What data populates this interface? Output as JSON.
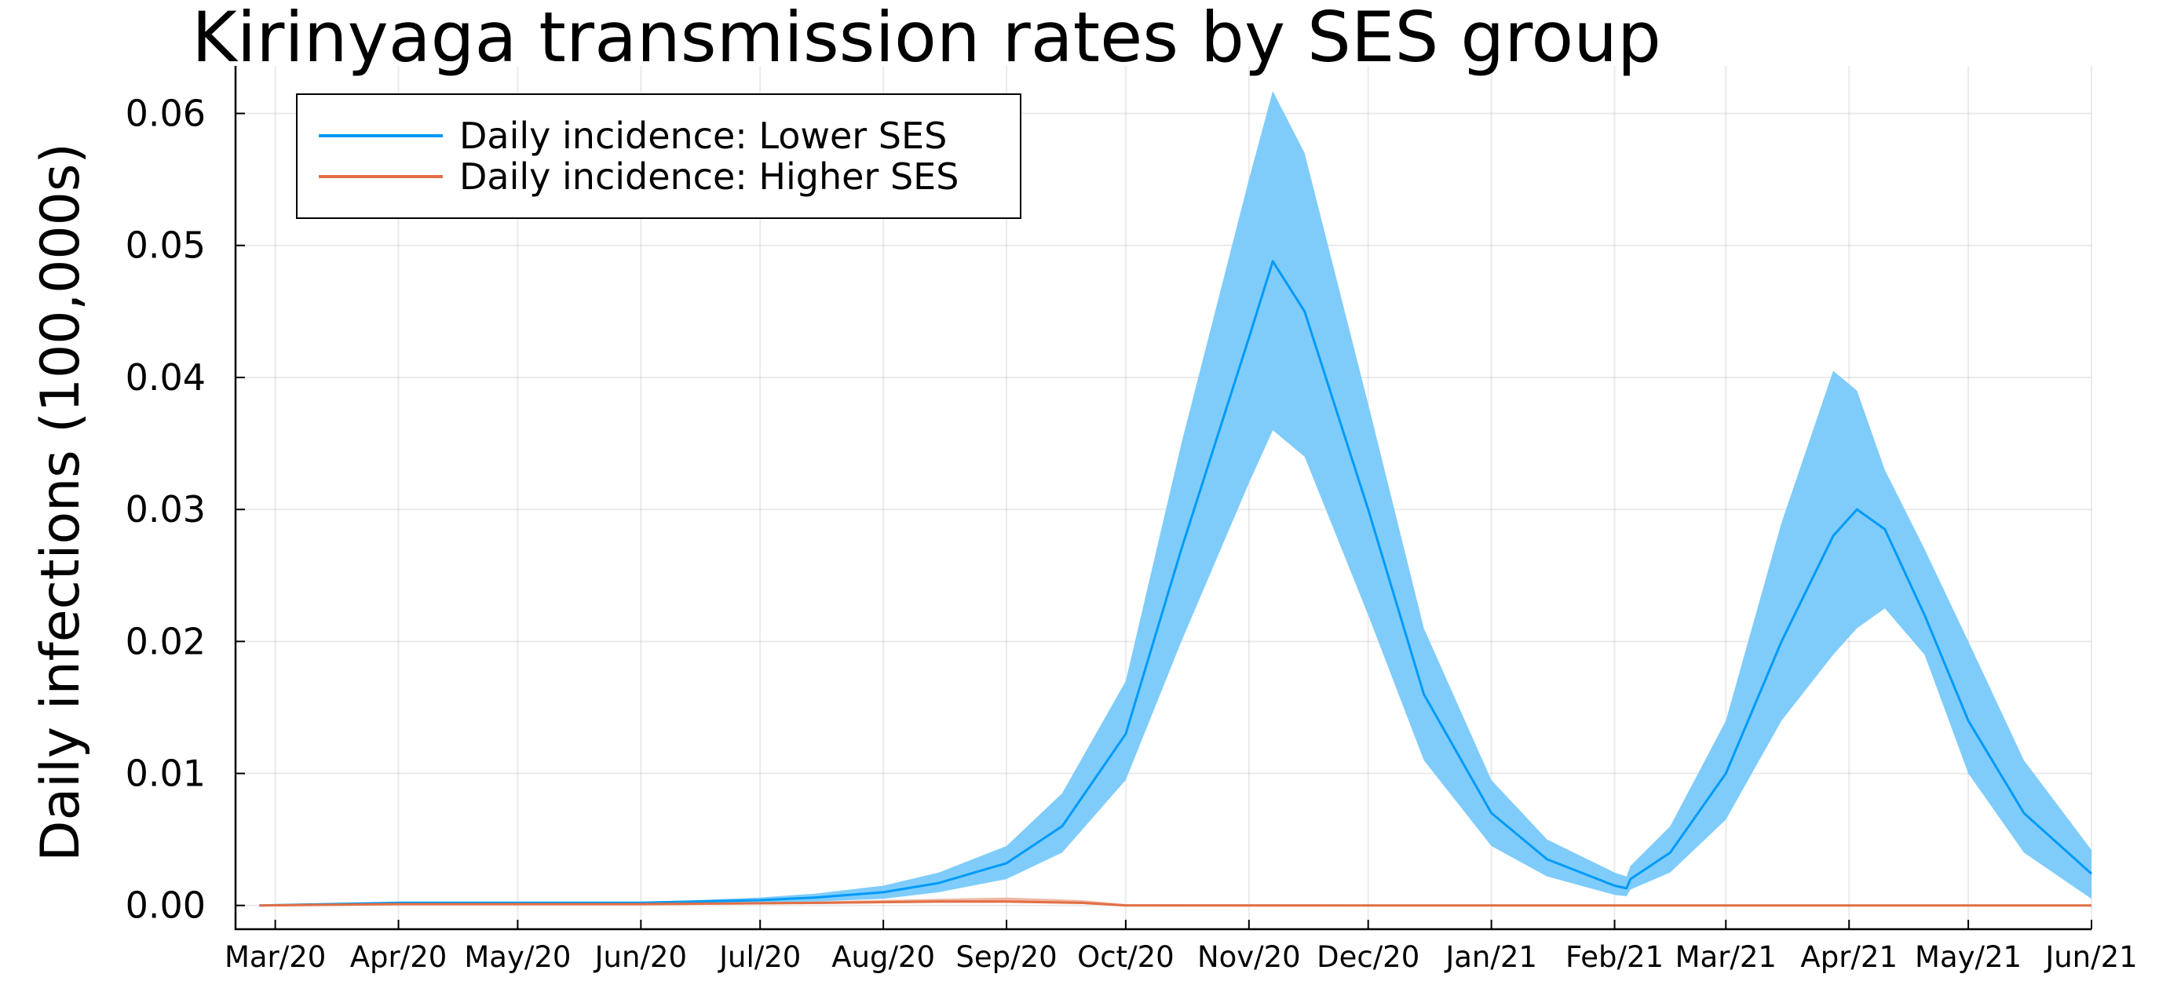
{
  "chart_data": {
    "type": "line",
    "title": "Kirinyaga transmission rates by SES group",
    "xlabel": "",
    "ylabel": "Daily infections (100,000s)",
    "x_ticks": [
      "Mar/20",
      "Apr/20",
      "May/20",
      "Jun/20",
      "Jul/20",
      "Aug/20",
      "Sep/20",
      "Oct/20",
      "Nov/20",
      "Dec/20",
      "Jan/21",
      "Feb/21",
      "Mar/21",
      "Apr/21",
      "May/21",
      "Jun/21"
    ],
    "y_ticks": [
      "0.00",
      "0.01",
      "0.02",
      "0.03",
      "0.04",
      "0.05",
      "0.06"
    ],
    "ylim": [
      -0.0018,
      0.0636
    ],
    "xlim": [
      "2020-02-20",
      "2021-06-01"
    ],
    "grid": true,
    "legend_position": "top-left",
    "series": [
      {
        "name": "Daily incidence: Lower SES",
        "color": "#009af9",
        "band_color": "#7fccfb",
        "points": [
          {
            "x": "2020-02-26",
            "y": 0.0,
            "lo": 0.0,
            "hi": 0.0
          },
          {
            "x": "2020-03-15",
            "y": 0.0001,
            "lo": 0.0,
            "hi": 0.0001
          },
          {
            "x": "2020-04-01",
            "y": 0.0002,
            "lo": 0.0001,
            "hi": 0.0003
          },
          {
            "x": "2020-04-15",
            "y": 0.0002,
            "lo": 0.0001,
            "hi": 0.0003
          },
          {
            "x": "2020-05-01",
            "y": 0.0002,
            "lo": 0.0001,
            "hi": 0.0003
          },
          {
            "x": "2020-05-15",
            "y": 0.0002,
            "lo": 0.0001,
            "hi": 0.0003
          },
          {
            "x": "2020-06-01",
            "y": 0.0002,
            "lo": 0.0001,
            "hi": 0.0003
          },
          {
            "x": "2020-06-15",
            "y": 0.0003,
            "lo": 0.0002,
            "hi": 0.0004
          },
          {
            "x": "2020-07-01",
            "y": 0.0004,
            "lo": 0.0002,
            "hi": 0.0006
          },
          {
            "x": "2020-07-15",
            "y": 0.0006,
            "lo": 0.0003,
            "hi": 0.0009
          },
          {
            "x": "2020-08-01",
            "y": 0.001,
            "lo": 0.0005,
            "hi": 0.0015
          },
          {
            "x": "2020-08-15",
            "y": 0.0017,
            "lo": 0.001,
            "hi": 0.0025
          },
          {
            "x": "2020-09-01",
            "y": 0.0032,
            "lo": 0.002,
            "hi": 0.0045
          },
          {
            "x": "2020-09-15",
            "y": 0.006,
            "lo": 0.004,
            "hi": 0.0085
          },
          {
            "x": "2020-10-01",
            "y": 0.013,
            "lo": 0.0095,
            "hi": 0.017
          },
          {
            "x": "2020-10-15",
            "y": 0.027,
            "lo": 0.02,
            "hi": 0.035
          },
          {
            "x": "2020-11-01",
            "y": 0.043,
            "lo": 0.032,
            "hi": 0.055
          },
          {
            "x": "2020-11-07",
            "y": 0.0488,
            "lo": 0.036,
            "hi": 0.0617
          },
          {
            "x": "2020-11-15",
            "y": 0.045,
            "lo": 0.034,
            "hi": 0.057
          },
          {
            "x": "2020-12-01",
            "y": 0.03,
            "lo": 0.022,
            "hi": 0.038
          },
          {
            "x": "2020-12-15",
            "y": 0.016,
            "lo": 0.011,
            "hi": 0.021
          },
          {
            "x": "2021-01-01",
            "y": 0.007,
            "lo": 0.0045,
            "hi": 0.0095
          },
          {
            "x": "2021-01-15",
            "y": 0.0035,
            "lo": 0.0022,
            "hi": 0.005
          },
          {
            "x": "2021-02-01",
            "y": 0.0015,
            "lo": 0.0008,
            "hi": 0.0025
          },
          {
            "x": "2021-02-04",
            "y": 0.0013,
            "lo": 0.0007,
            "hi": 0.0022
          },
          {
            "x": "2021-02-05",
            "y": 0.002,
            "lo": 0.0012,
            "hi": 0.003
          },
          {
            "x": "2021-02-15",
            "y": 0.004,
            "lo": 0.0025,
            "hi": 0.006
          },
          {
            "x": "2021-03-01",
            "y": 0.01,
            "lo": 0.0065,
            "hi": 0.014
          },
          {
            "x": "2021-03-15",
            "y": 0.02,
            "lo": 0.014,
            "hi": 0.029
          },
          {
            "x": "2021-03-28",
            "y": 0.028,
            "lo": 0.019,
            "hi": 0.0405
          },
          {
            "x": "2021-04-03",
            "y": 0.03,
            "lo": 0.021,
            "hi": 0.039
          },
          {
            "x": "2021-04-10",
            "y": 0.0285,
            "lo": 0.0225,
            "hi": 0.033
          },
          {
            "x": "2021-04-20",
            "y": 0.022,
            "lo": 0.019,
            "hi": 0.027
          },
          {
            "x": "2021-05-01",
            "y": 0.014,
            "lo": 0.01,
            "hi": 0.02
          },
          {
            "x": "2021-05-15",
            "y": 0.007,
            "lo": 0.004,
            "hi": 0.011
          },
          {
            "x": "2021-06-01",
            "y": 0.0024,
            "lo": 0.0005,
            "hi": 0.0042
          }
        ]
      },
      {
        "name": "Daily incidence: Higher SES",
        "color": "#e26f46",
        "band_color": "#f0b7a2",
        "points": [
          {
            "x": "2020-02-26",
            "y": 0.0,
            "lo": 0.0,
            "hi": 0.0
          },
          {
            "x": "2020-04-01",
            "y": 0.0001,
            "lo": 0.0,
            "hi": 0.0001
          },
          {
            "x": "2020-06-01",
            "y": 0.0001,
            "lo": 0.0,
            "hi": 0.0001
          },
          {
            "x": "2020-07-15",
            "y": 0.0002,
            "lo": 0.0001,
            "hi": 0.0003
          },
          {
            "x": "2020-08-15",
            "y": 0.0003,
            "lo": 0.0002,
            "hi": 0.0005
          },
          {
            "x": "2020-09-01",
            "y": 0.0003,
            "lo": 0.0002,
            "hi": 0.0006
          },
          {
            "x": "2020-09-20",
            "y": 0.0002,
            "lo": 0.0001,
            "hi": 0.0004
          },
          {
            "x": "2020-10-01",
            "y": 0.0,
            "lo": 0.0,
            "hi": 0.0001
          },
          {
            "x": "2021-06-01",
            "y": 0.0,
            "lo": 0.0,
            "hi": 0.0
          }
        ]
      }
    ]
  }
}
